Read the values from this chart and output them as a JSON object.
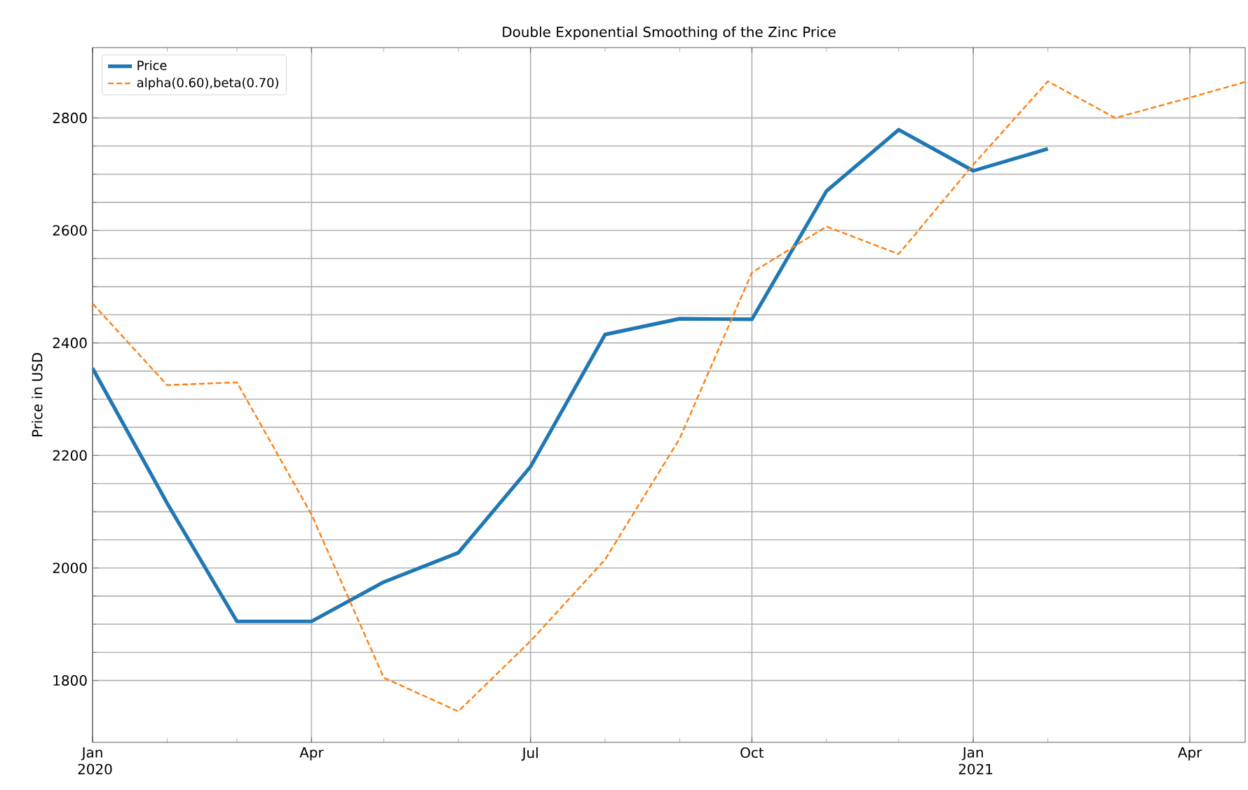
{
  "chart_data": {
    "type": "line",
    "title": "Double Exponential Smoothing of the Zinc Price",
    "ylabel": "Price in USD",
    "x": [
      "2020-01",
      "2020-02",
      "2020-03",
      "2020-04",
      "2020-05",
      "2020-06",
      "2020-07",
      "2020-08",
      "2020-09",
      "2020-10",
      "2020-11",
      "2020-12",
      "2021-01",
      "2021-02"
    ],
    "series": [
      {
        "name": "Price",
        "color": "#1f77b4",
        "line_style": "solid",
        "values": [
          2355,
          2115,
          1905,
          1905,
          1975,
          2027,
          2180,
          2415,
          2443,
          2442,
          2670,
          2779,
          2706,
          2745
        ]
      },
      {
        "name": "alpha(0.60),beta(0.70)",
        "color": "#ff7f0e",
        "line_style": "dashed",
        "x": [
          "2020-01",
          "2020-02",
          "2020-03",
          "2020-04",
          "2020-05",
          "2020-06",
          "2020-07",
          "2020-08",
          "2020-09",
          "2020-10",
          "2020-11",
          "2020-12",
          "2021-01",
          "2021-02",
          "2021-03",
          "2021-04",
          "2021-04-24"
        ],
        "values": [
          2470,
          2325,
          2330,
          2095,
          1805,
          1745,
          1870,
          2015,
          2230,
          2525,
          2607,
          2558,
          2717,
          2865,
          2800,
          2836,
          2864
        ]
      }
    ],
    "xlim": [
      "2020-01",
      "2021-04-24"
    ],
    "xticks": [
      {
        "value": "2020-01",
        "label": "Jan 2020"
      },
      {
        "value": "2020-04",
        "label": "Apr"
      },
      {
        "value": "2020-07",
        "label": "Jul"
      },
      {
        "value": "2020-10",
        "label": "Oct"
      },
      {
        "value": "2021-01",
        "label": "Jan 2021"
      },
      {
        "value": "2021-04",
        "label": "Apr"
      }
    ],
    "ylim": [
      1690,
      2925
    ],
    "yticks": [
      1800,
      2000,
      2200,
      2400,
      2600,
      2800
    ],
    "grid": true,
    "legend": "top left",
    "marker": "none"
  }
}
